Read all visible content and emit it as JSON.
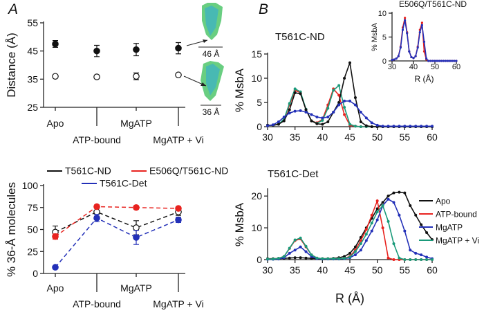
{
  "chart_data": [
    {
      "type": "scatter",
      "panel_label": "A",
      "ylabel": "Distance (Å)",
      "categories": [
        "Apo",
        "ATP-bound",
        "MgATP",
        "MgATP + Vi"
      ],
      "ylim": [
        25,
        55
      ],
      "yticks": [
        25,
        35,
        45,
        55
      ],
      "annotations": [
        "46 Å",
        "36 Å"
      ],
      "series": [
        {
          "color": "#111111",
          "marker": "filled",
          "values": [
            47.5,
            45,
            45.5,
            46
          ],
          "errors": [
            1.2,
            2,
            2.2,
            2
          ]
        },
        {
          "color": "#111111",
          "marker": "open",
          "values": [
            36,
            35.8,
            36,
            36.5
          ],
          "errors": [
            0.5,
            0.3,
            1.2,
            0.3
          ]
        }
      ]
    },
    {
      "type": "line",
      "ylabel": "% 36-Å molecules",
      "dashed": true,
      "categories": [
        "Apo",
        "ATP-bound",
        "MgATP",
        "MgATP + Vi"
      ],
      "ylim": [
        0,
        100
      ],
      "yticks": [
        0,
        25,
        50,
        75,
        100
      ],
      "series": [
        {
          "name": "T561C-ND",
          "color": "#111111",
          "marker": "open",
          "values": [
            47,
            70,
            52,
            70
          ],
          "errors": [
            7,
            5,
            8,
            4
          ]
        },
        {
          "name": "E506Q/T561C-ND",
          "color": "#e8231f",
          "marker": "filled",
          "values": [
            42,
            76,
            75,
            74
          ],
          "errors": [
            3,
            2,
            2,
            2
          ]
        },
        {
          "name": "T561C-Det",
          "color": "#2330b8",
          "marker": "filled",
          "values": [
            7,
            63,
            41,
            61
          ],
          "errors": [
            0,
            4,
            8,
            3
          ]
        }
      ]
    },
    {
      "type": "line",
      "panel_label": "B",
      "title": "T561C-ND",
      "ylabel": "% MsbA",
      "x": [
        30,
        31,
        32,
        33,
        34,
        35,
        36,
        37,
        38,
        39,
        40,
        41,
        42,
        43,
        44,
        45,
        46,
        47,
        48,
        49,
        50,
        51,
        52,
        53,
        54,
        55,
        56,
        57,
        58,
        59,
        60
      ],
      "xlim": [
        30,
        60
      ],
      "xticks": [
        30,
        35,
        40,
        45,
        50,
        55,
        60
      ],
      "ylim": [
        0,
        15
      ],
      "yticks": [
        0,
        5,
        10,
        15
      ],
      "series": [
        {
          "color": "#e8231f",
          "values": [
            0.3,
            0.3,
            0.5,
            1.5,
            4.5,
            7.5,
            7,
            3.5,
            1.2,
            0.8,
            1.5,
            4.5,
            7.8,
            6.5,
            2.5,
            0.3,
            0.1,
            0,
            0,
            0,
            0,
            0,
            0,
            0,
            0,
            0,
            0,
            0,
            0,
            0,
            0
          ]
        },
        {
          "color": "#1a9a7a",
          "values": [
            0.3,
            0.3,
            0.5,
            1.6,
            4.8,
            7.8,
            7.2,
            3.6,
            1.2,
            0.7,
            1.3,
            3.8,
            7.5,
            8.5,
            4,
            0.5,
            0.1,
            0,
            0,
            0,
            0,
            0,
            0,
            0,
            0,
            0,
            0,
            0,
            0,
            0,
            0
          ]
        },
        {
          "color": "#111111",
          "values": [
            0.3,
            0.3,
            0.5,
            1.2,
            3.5,
            7,
            6.8,
            3.5,
            1.2,
            0.6,
            0.5,
            1,
            3,
            5,
            10,
            13.2,
            6,
            1,
            0.2,
            0,
            0,
            0,
            0,
            0,
            0,
            0,
            0,
            0,
            0,
            0,
            0
          ]
        },
        {
          "color": "#2330b8",
          "values": [
            0.2,
            0.4,
            1,
            2,
            2.8,
            3.2,
            3.3,
            3,
            2.5,
            2,
            1.8,
            2,
            3,
            4.5,
            5.3,
            5.3,
            4.5,
            3,
            1.8,
            0.8,
            0.3,
            0.1,
            0.1,
            0.1,
            0.1,
            0.1,
            0.1,
            0.1,
            0.1,
            0.1,
            0.1
          ]
        }
      ]
    },
    {
      "type": "line",
      "title": "E506Q/T561C-ND",
      "ylabel": "% MsbA",
      "xlabel": "R (Å)",
      "x": [
        30,
        31,
        32,
        33,
        34,
        35,
        36,
        37,
        38,
        39,
        40,
        41,
        42,
        43,
        44,
        45,
        46,
        47,
        48,
        49,
        50,
        51,
        52,
        53,
        54,
        55,
        56,
        57,
        58,
        59,
        60
      ],
      "xlim": [
        30,
        60
      ],
      "xticks": [
        30,
        40,
        50,
        60
      ],
      "ylim": [
        0,
        10
      ],
      "yticks": [
        0,
        5,
        10
      ],
      "series": [
        {
          "color": "#e8231f",
          "values": [
            0.2,
            0.3,
            0.5,
            1,
            3,
            7,
            9,
            6,
            2,
            0.8,
            0.6,
            1,
            3,
            6.5,
            8,
            2,
            0.3,
            0,
            0,
            0,
            0,
            0,
            0,
            0,
            0,
            0,
            0,
            0,
            0,
            0,
            0
          ]
        },
        {
          "color": "#2330b8",
          "values": [
            0.2,
            0.3,
            0.5,
            1,
            2.8,
            6.5,
            8.5,
            5.8,
            2,
            0.8,
            0.6,
            1,
            2.8,
            6,
            7.5,
            4,
            0.5,
            0,
            0,
            0,
            0,
            0,
            0,
            0,
            0,
            0,
            0,
            0,
            0,
            0,
            0
          ]
        }
      ]
    },
    {
      "type": "line",
      "title": "T561C-Det",
      "ylabel": "% MsbA",
      "xlabel": "R (Å)",
      "x": [
        30,
        31,
        32,
        33,
        34,
        35,
        36,
        37,
        38,
        39,
        40,
        41,
        42,
        43,
        44,
        45,
        46,
        47,
        48,
        49,
        50,
        51,
        52,
        53,
        54,
        55,
        56,
        57,
        58,
        59,
        60
      ],
      "xlim": [
        30,
        60
      ],
      "xticks": [
        30,
        35,
        40,
        45,
        50,
        55,
        60
      ],
      "ylim": [
        0,
        22
      ],
      "yticks": [
        0,
        10,
        20
      ],
      "series": [
        {
          "name": "Apo",
          "color": "#111111",
          "values": [
            0.3,
            0.3,
            0.3,
            0.4,
            0.5,
            0.6,
            0.6,
            0.5,
            0.4,
            0.3,
            0.3,
            0.3,
            0.4,
            0.6,
            1,
            2,
            4,
            7,
            10,
            13,
            16,
            18,
            20,
            21,
            21.2,
            21,
            17,
            14,
            11,
            8.5,
            6.3
          ]
        },
        {
          "name": "ATP-bound",
          "color": "#e8231f",
          "values": [
            0.2,
            0.2,
            0.4,
            1,
            3.5,
            6,
            6.5,
            4,
            1.5,
            0.5,
            0.3,
            0.3,
            0.3,
            0.3,
            0.4,
            1,
            3,
            6,
            9.5,
            14,
            18.5,
            10,
            0.5,
            0,
            0,
            0,
            0,
            0,
            0,
            0,
            0
          ]
        },
        {
          "name": "MgATP",
          "color": "#2330b8",
          "values": [
            0.1,
            0.1,
            0.2,
            0.6,
            2,
            3,
            4,
            2.5,
            1,
            0.3,
            0.2,
            0.2,
            0.2,
            0.2,
            0.3,
            0.6,
            1.5,
            3,
            6,
            9,
            12.5,
            17,
            19,
            18,
            14,
            9,
            3,
            2,
            1.5,
            0.8,
            0.3
          ]
        },
        {
          "name": "MgATP + Vi",
          "color": "#1a9a7a",
          "values": [
            0.2,
            0.2,
            0.4,
            1,
            3.6,
            6.2,
            6.8,
            4.2,
            1.5,
            0.5,
            0.3,
            0.3,
            0.3,
            0.3,
            0.4,
            0.8,
            2.5,
            5,
            8,
            11.5,
            15,
            17,
            12,
            5,
            0.5,
            0,
            0,
            0,
            0,
            0,
            0
          ]
        }
      ]
    }
  ]
}
